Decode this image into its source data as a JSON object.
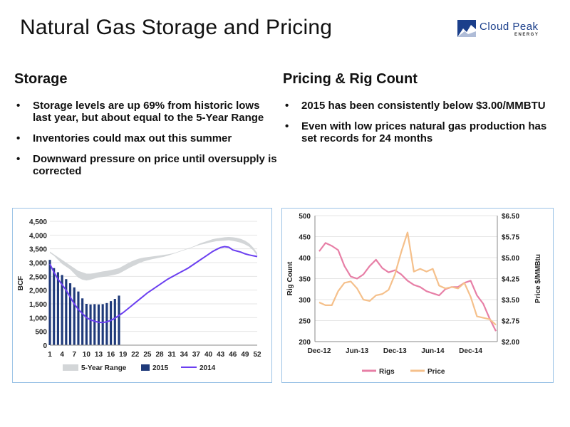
{
  "slide": {
    "title": "Natural Gas Storage and Pricing",
    "logo": {
      "name": "Cloud Peak",
      "sub": "ENERGY",
      "color": "#1b3f8b"
    }
  },
  "left": {
    "heading": "Storage",
    "bullets": [
      "Storage levels are up 69% from historic lows last year, but about equal to the 5-Year Range",
      "Inventories could max out this summer",
      "Downward pressure on price until oversupply is corrected"
    ]
  },
  "right": {
    "heading": "Pricing & Rig Count",
    "bullets": [
      "2015 has been consistently below $3.00/MMBTU",
      "Even with low prices natural gas production has set records for 24 months"
    ]
  },
  "chart_data": [
    {
      "type": "bar",
      "ylabel": "BCF",
      "ylim": [
        0,
        4500
      ],
      "yticks": [
        "0",
        "500",
        "1,000",
        "1,500",
        "2,000",
        "2,500",
        "3,000",
        "3,500",
        "4,000",
        "4,500"
      ],
      "xticks": [
        "1",
        "4",
        "7",
        "10",
        "13",
        "16",
        "19",
        "22",
        "25",
        "28",
        "31",
        "34",
        "37",
        "40",
        "43",
        "46",
        "49",
        "52"
      ],
      "legend": [
        "5-Year Range",
        "2015",
        "2014"
      ],
      "colors": {
        "range": "#d3d6d8",
        "bars": "#1f3a7a",
        "line2014": "#6b3ff0"
      },
      "x": [
        1,
        2,
        3,
        4,
        5,
        6,
        7,
        8,
        9,
        10,
        11,
        12,
        13,
        14,
        15,
        16,
        17,
        18,
        19,
        20,
        21,
        22,
        23,
        24,
        25,
        26,
        27,
        28,
        29,
        30,
        31,
        32,
        33,
        34,
        35,
        36,
        37,
        38,
        39,
        40,
        41,
        42,
        43,
        44,
        45,
        46,
        47,
        48,
        49,
        50,
        51,
        52
      ],
      "range_low": [
        3350,
        3250,
        3100,
        2950,
        2850,
        2750,
        2600,
        2450,
        2380,
        2350,
        2380,
        2420,
        2460,
        2480,
        2500,
        2530,
        2560,
        2600,
        2680,
        2760,
        2840,
        2910,
        2980,
        3040,
        3080,
        3120,
        3150,
        3180,
        3210,
        3250,
        3300,
        3350,
        3400,
        3450,
        3500,
        3550,
        3600,
        3650,
        3680,
        3720,
        3750,
        3780,
        3790,
        3800,
        3810,
        3790,
        3760,
        3720,
        3660,
        3580,
        3450,
        3250
      ],
      "range_high": [
        3400,
        3300,
        3200,
        3100,
        3000,
        2900,
        2800,
        2700,
        2650,
        2600,
        2600,
        2620,
        2650,
        2680,
        2700,
        2730,
        2760,
        2800,
        2880,
        2960,
        3040,
        3100,
        3150,
        3180,
        3200,
        3220,
        3240,
        3260,
        3280,
        3300,
        3330,
        3370,
        3420,
        3470,
        3520,
        3570,
        3630,
        3700,
        3750,
        3800,
        3850,
        3880,
        3900,
        3920,
        3930,
        3920,
        3900,
        3860,
        3800,
        3700,
        3550,
        3350
      ],
      "bars_2015": [
        3100,
        2800,
        2650,
        2550,
        2400,
        2250,
        2100,
        1950,
        1700,
        1500,
        1480,
        1490,
        1480,
        1490,
        1530,
        1600,
        1680,
        1800
      ],
      "line_2014": [
        2950,
        2650,
        2400,
        2200,
        2000,
        1750,
        1500,
        1300,
        1150,
        1000,
        920,
        870,
        830,
        820,
        850,
        900,
        980,
        1080,
        1180,
        1300,
        1420,
        1540,
        1660,
        1780,
        1900,
        2000,
        2100,
        2200,
        2300,
        2400,
        2480,
        2560,
        2640,
        2720,
        2800,
        2900,
        3000,
        3100,
        3200,
        3300,
        3400,
        3480,
        3550,
        3580,
        3560,
        3460,
        3420,
        3380,
        3320,
        3280,
        3250,
        3220
      ]
    },
    {
      "type": "line",
      "ylabel": "Rig Count",
      "y2label": "Price $/MMBtu",
      "ylim": [
        200,
        500
      ],
      "y2lim": [
        2.0,
        6.5
      ],
      "yticks": [
        "200",
        "250",
        "300",
        "350",
        "400",
        "450",
        "500"
      ],
      "y2ticks": [
        "$2.00",
        "$2.75",
        "$3.50",
        "$4.25",
        "$5.00",
        "$5.75",
        "$6.50"
      ],
      "xticks": [
        "Dec-12",
        "Jun-13",
        "Dec-13",
        "Jun-14",
        "Dec-14"
      ],
      "legend": [
        "Rigs",
        "Price"
      ],
      "colors": {
        "rigs": "#e77fa6",
        "price": "#f5c08b"
      },
      "series": [
        {
          "name": "Rigs",
          "axis": "left",
          "x": [
            "Dec-12",
            "Jan-13",
            "Feb-13",
            "Mar-13",
            "Apr-13",
            "May-13",
            "Jun-13",
            "Jul-13",
            "Aug-13",
            "Sep-13",
            "Oct-13",
            "Nov-13",
            "Dec-13",
            "Jan-14",
            "Feb-14",
            "Mar-14",
            "Apr-14",
            "May-14",
            "Jun-14",
            "Jul-14",
            "Aug-14",
            "Sep-14",
            "Oct-14",
            "Nov-14",
            "Dec-14",
            "Jan-15",
            "Feb-15",
            "Mar-15",
            "Apr-15"
          ],
          "values": [
            415,
            435,
            428,
            418,
            380,
            355,
            350,
            360,
            380,
            395,
            375,
            365,
            370,
            360,
            345,
            335,
            330,
            320,
            315,
            310,
            325,
            330,
            330,
            340,
            345,
            310,
            290,
            255,
            225
          ]
        },
        {
          "name": "Price",
          "axis": "right",
          "x": [
            "Dec-12",
            "Jan-13",
            "Feb-13",
            "Mar-13",
            "Apr-13",
            "May-13",
            "Jun-13",
            "Jul-13",
            "Aug-13",
            "Sep-13",
            "Oct-13",
            "Nov-13",
            "Dec-13",
            "Jan-14",
            "Feb-14",
            "Mar-14",
            "Apr-14",
            "May-14",
            "Jun-14",
            "Jul-14",
            "Aug-14",
            "Sep-14",
            "Oct-14",
            "Nov-14",
            "Dec-14",
            "Jan-15",
            "Feb-15",
            "Mar-15",
            "Apr-15"
          ],
          "values": [
            3.4,
            3.3,
            3.3,
            3.8,
            4.1,
            4.15,
            3.9,
            3.5,
            3.45,
            3.65,
            3.7,
            3.85,
            4.4,
            5.2,
            5.9,
            4.5,
            4.6,
            4.5,
            4.6,
            4.0,
            3.9,
            3.95,
            3.9,
            4.1,
            3.6,
            2.9,
            2.85,
            2.8,
            2.6
          ]
        }
      ]
    }
  ]
}
